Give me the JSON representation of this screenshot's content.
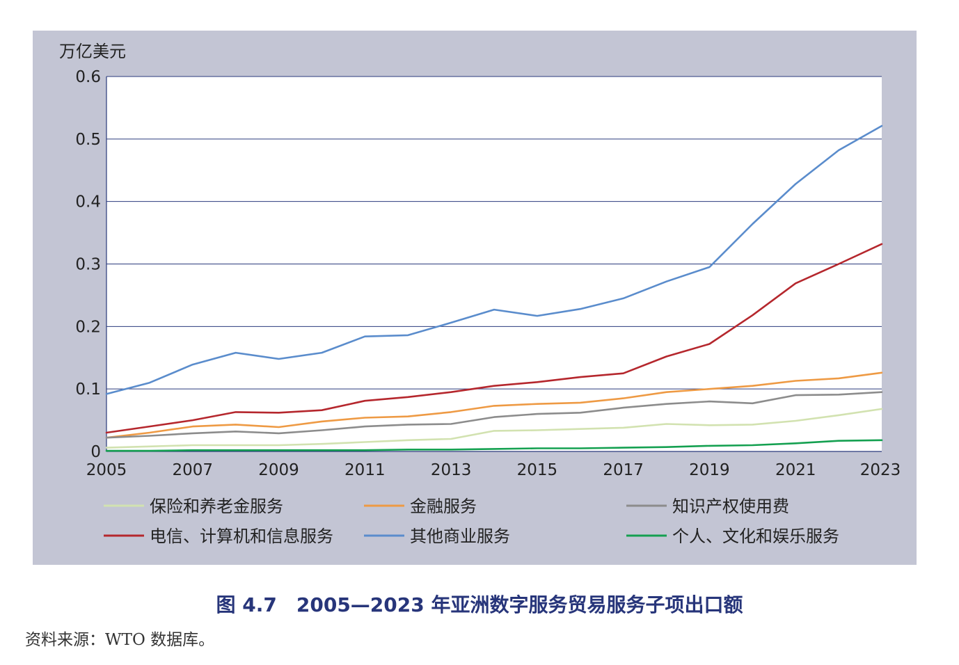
{
  "figure": {
    "caption": "图 4.7　2005—2023 年亚洲数字服务贸易服务子项出口额",
    "source": "资料来源：WTO 数据库。"
  },
  "chart_data": {
    "type": "line",
    "ylabel": "万亿美元",
    "xlabel": "",
    "ylim": [
      0,
      0.6
    ],
    "xlim": [
      2005,
      2023
    ],
    "y_ticks": [
      0,
      0.1,
      0.2,
      0.3,
      0.4,
      0.5,
      0.6
    ],
    "y_tick_labels": [
      "0",
      "0.1",
      "0.2",
      "0.3",
      "0.4",
      "0.5",
      "0.6"
    ],
    "x_ticks": [
      2005,
      2007,
      2009,
      2011,
      2013,
      2015,
      2017,
      2019,
      2021,
      2023
    ],
    "x_tick_labels": [
      "2005",
      "2007",
      "2009",
      "2011",
      "2013",
      "2015",
      "2017",
      "2019",
      "2021",
      "2023"
    ],
    "grid": "horizontal",
    "legend_position": "bottom",
    "x": [
      2005,
      2006,
      2007,
      2008,
      2009,
      2010,
      2011,
      2012,
      2013,
      2014,
      2015,
      2016,
      2017,
      2018,
      2019,
      2020,
      2021,
      2022,
      2023
    ],
    "series": [
      {
        "name": "保险和养老金服务",
        "color": "#d2e2b0",
        "values": [
          0.006,
          0.008,
          0.01,
          0.01,
          0.01,
          0.012,
          0.015,
          0.018,
          0.02,
          0.033,
          0.034,
          0.036,
          0.038,
          0.044,
          0.042,
          0.043,
          0.049,
          0.058,
          0.068
        ]
      },
      {
        "name": "金融服务",
        "color": "#ee9a44",
        "values": [
          0.022,
          0.03,
          0.04,
          0.043,
          0.039,
          0.048,
          0.054,
          0.056,
          0.063,
          0.073,
          0.076,
          0.078,
          0.085,
          0.095,
          0.1,
          0.105,
          0.113,
          0.117,
          0.126
        ]
      },
      {
        "name": "知识产权使用费",
        "color": "#8c8c8c",
        "values": [
          0.022,
          0.025,
          0.029,
          0.032,
          0.029,
          0.034,
          0.04,
          0.043,
          0.044,
          0.055,
          0.06,
          0.062,
          0.07,
          0.076,
          0.08,
          0.077,
          0.09,
          0.091,
          0.095
        ]
      },
      {
        "name": "电信、计算机和信息服务",
        "color": "#b5272d",
        "values": [
          0.03,
          0.04,
          0.05,
          0.063,
          0.062,
          0.066,
          0.081,
          0.087,
          0.095,
          0.105,
          0.111,
          0.119,
          0.125,
          0.152,
          0.172,
          0.218,
          0.269,
          0.3,
          0.332
        ]
      },
      {
        "name": "其他商业服务",
        "color": "#5a8ccc",
        "values": [
          0.092,
          0.11,
          0.139,
          0.158,
          0.148,
          0.158,
          0.184,
          0.186,
          0.206,
          0.227,
          0.217,
          0.228,
          0.245,
          0.272,
          0.295,
          0.364,
          0.428,
          0.482,
          0.521
        ]
      },
      {
        "name": "个人、文化和娱乐服务",
        "color": "#14a050",
        "values": [
          0.001,
          0.001,
          0.002,
          0.002,
          0.002,
          0.002,
          0.002,
          0.003,
          0.003,
          0.004,
          0.005,
          0.005,
          0.006,
          0.007,
          0.009,
          0.01,
          0.013,
          0.017,
          0.018
        ]
      }
    ]
  }
}
